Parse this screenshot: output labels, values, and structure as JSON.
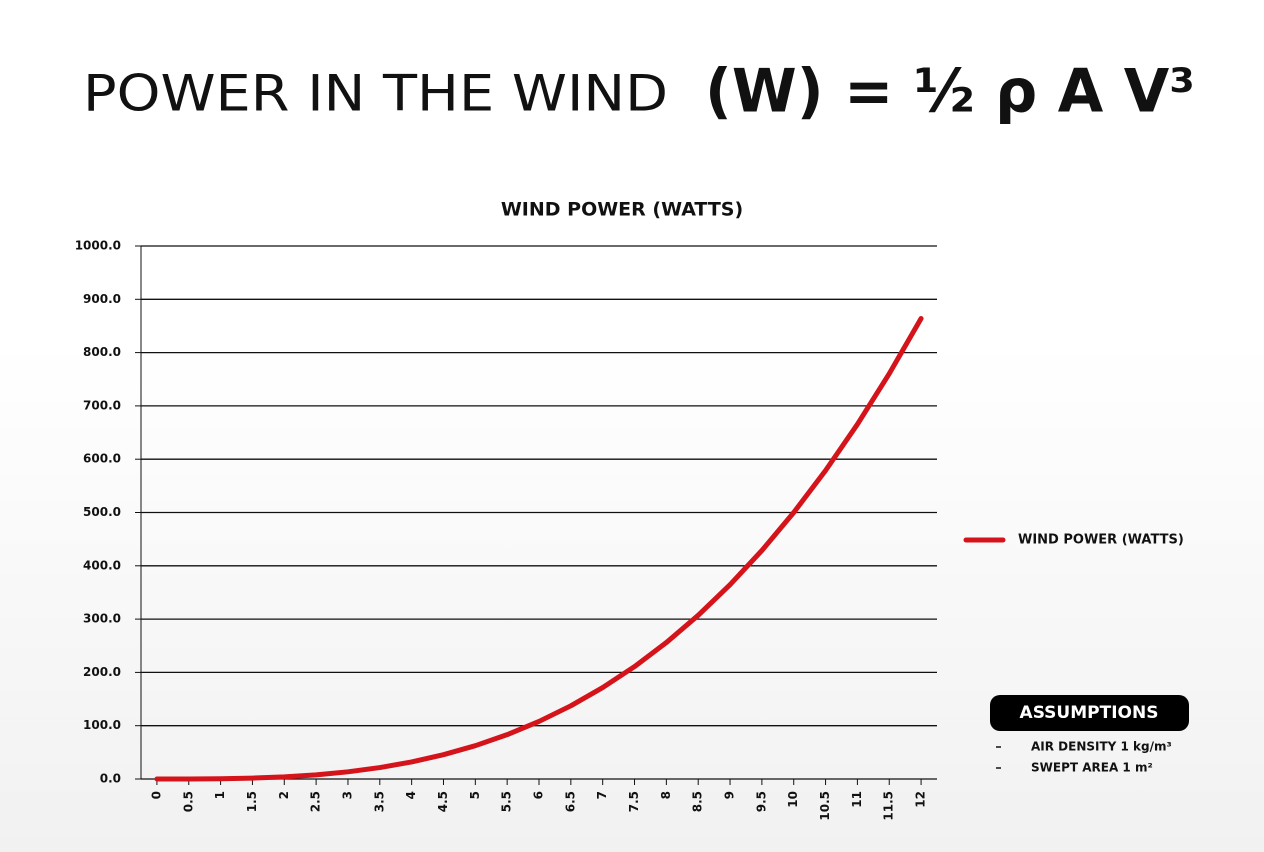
{
  "header": {
    "title": "POWER IN THE WIND",
    "formula": "(W) = ½ ρ A V³"
  },
  "chart_data": {
    "type": "line",
    "title": "WIND POWER (WATTS)",
    "categories": [
      "0",
      "0.5",
      "1",
      "1.5",
      "2",
      "2.5",
      "3",
      "3.5",
      "4",
      "4.5",
      "5",
      "5.5",
      "6",
      "6.5",
      "7",
      "7.5",
      "8",
      "8.5",
      "9",
      "9.5",
      "10",
      "10.5",
      "11",
      "11.5",
      "12"
    ],
    "series": [
      {
        "name": "WIND POWER (WATTS)",
        "color": "#d4141a",
        "values": [
          0,
          0.0625,
          0.5,
          1.6875,
          4,
          7.8125,
          13.5,
          21.4375,
          32,
          45.5625,
          62.5,
          83.1875,
          108,
          137.3125,
          171.5,
          210.9375,
          256,
          307.0625,
          364.5,
          428.6875,
          500,
          578.8125,
          665.5,
          760.4375,
          864
        ]
      }
    ],
    "ylim": [
      0,
      1000
    ],
    "yticks": [
      {
        "value": 0,
        "label": "0.0"
      },
      {
        "value": 100,
        "label": "100.0"
      },
      {
        "value": 200,
        "label": "200.0"
      },
      {
        "value": 300,
        "label": "300.0"
      },
      {
        "value": 400,
        "label": "400.0"
      },
      {
        "value": 500,
        "label": "500.0"
      },
      {
        "value": 600,
        "label": "600.0"
      },
      {
        "value": 700,
        "label": "700.0"
      },
      {
        "value": 800,
        "label": "800.0"
      },
      {
        "value": 900,
        "label": "900.0"
      },
      {
        "value": 1000,
        "label": "1000.0"
      }
    ],
    "grid": true,
    "legend": "right"
  },
  "assumptions": {
    "title": "ASSUMPTIONS",
    "items": [
      "AIR DENSITY 1 kg/m³",
      "SWEPT AREA 1 m²"
    ]
  }
}
